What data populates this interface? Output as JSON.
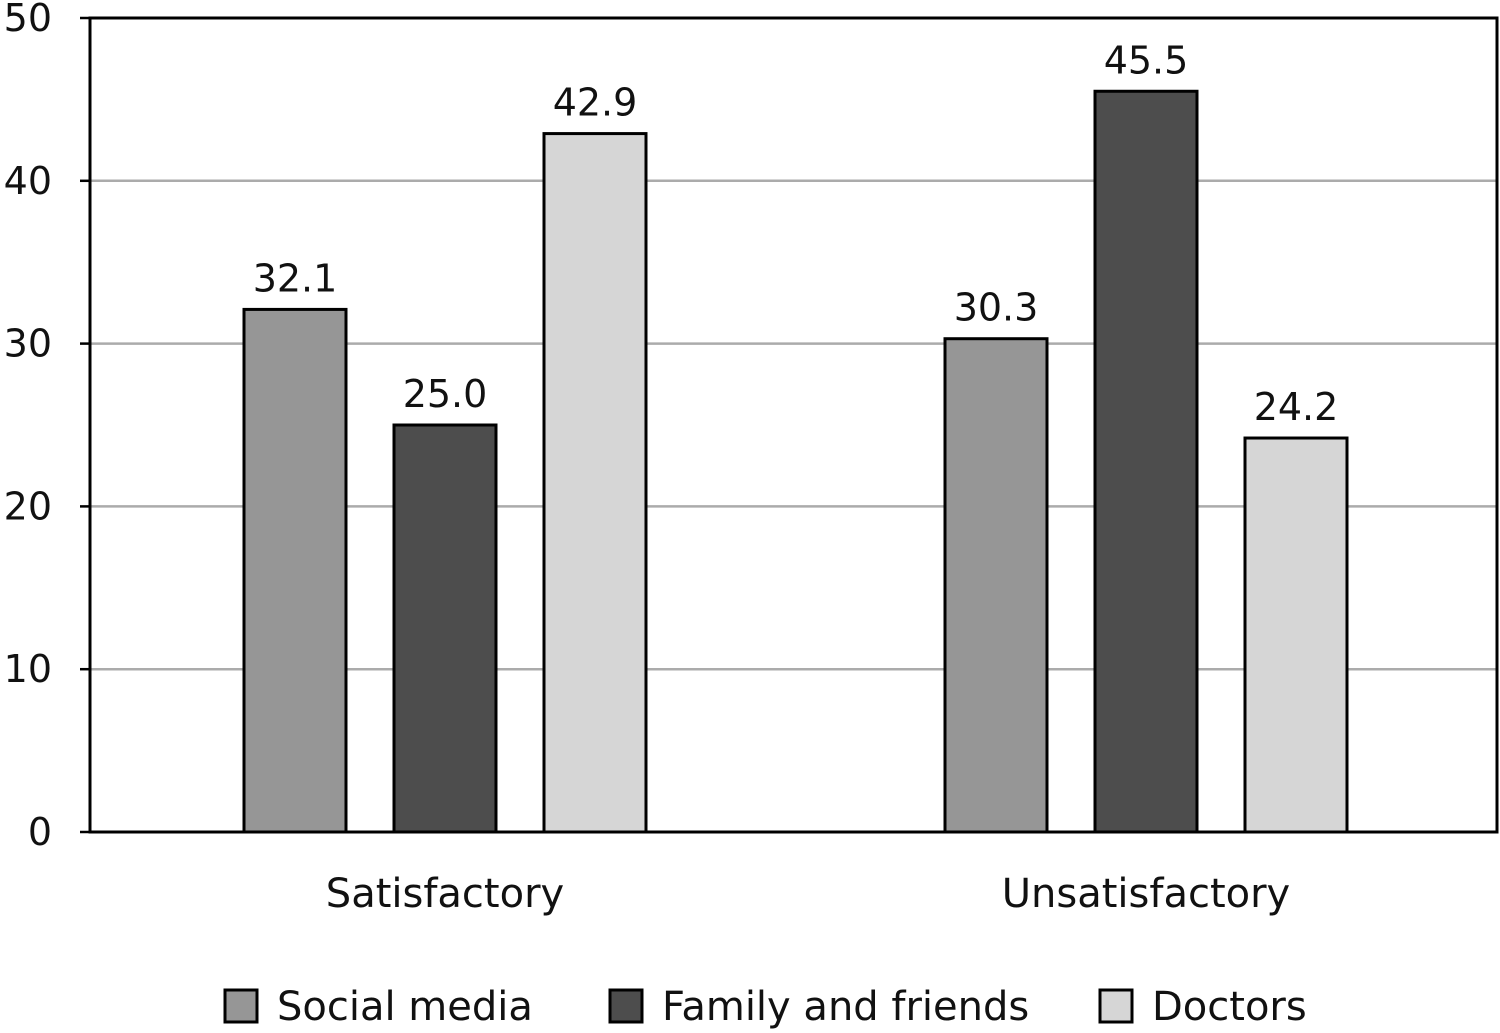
{
  "chart_data": {
    "type": "bar",
    "title": "",
    "xlabel": "",
    "ylabel": "",
    "ylim": [
      0,
      50
    ],
    "yticks": [
      0,
      10,
      20,
      30,
      40,
      50
    ],
    "grid": true,
    "categories": [
      "Satisfactory",
      "Unsatisfactory"
    ],
    "series": [
      {
        "name": "Social media",
        "color": "#969696",
        "values": [
          32.1,
          30.3
        ],
        "labels": [
          "32.1",
          "30.3"
        ]
      },
      {
        "name": "Family and friends",
        "color": "#4d4d4d",
        "values": [
          25.0,
          45.5
        ],
        "labels": [
          "25.0",
          "45.5"
        ]
      },
      {
        "name": "Doctors",
        "color": "#d6d6d6",
        "values": [
          42.9,
          24.2
        ],
        "labels": [
          "42.9",
          "24.2"
        ]
      }
    ],
    "legend_position": "bottom"
  }
}
